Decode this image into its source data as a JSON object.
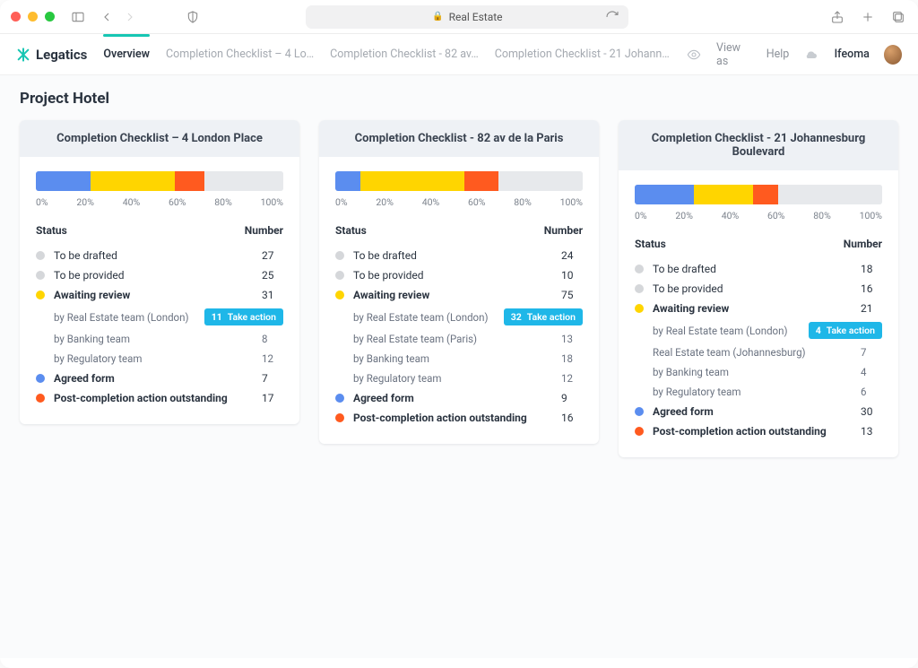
{
  "browser": {
    "address_label": "Real Estate"
  },
  "brand": {
    "name": "Legatics",
    "accent": "#17c6b3"
  },
  "nav": {
    "tabs": [
      {
        "label": "Overview",
        "active": true
      },
      {
        "label": "Completion Checklist – 4 Lo…"
      },
      {
        "label": "Completion Checklist - 82 av…"
      },
      {
        "label": "Completion Checklist - 21 Johann…"
      }
    ],
    "view_as": "View as",
    "help": "Help",
    "user": "Ifeoma"
  },
  "page": {
    "title": "Project Hotel"
  },
  "colors": {
    "blue": "#5b8def",
    "yellow": "#ffd500",
    "orange": "#ff5a1f",
    "grey": "#d5d7da",
    "grey_light": "#e7e9ec",
    "badge": "#1fb7e8",
    "text": "#2b3440"
  },
  "axis_labels": [
    "0%",
    "20%",
    "40%",
    "60%",
    "80%",
    "100%"
  ],
  "table_head": {
    "status": "Status",
    "number": "Number"
  },
  "badge_label": "Take action",
  "cards": [
    {
      "title": "Completion Checklist – 4 London Place",
      "bar": [
        {
          "colorKey": "blue",
          "pct": 22
        },
        {
          "colorKey": "yellow",
          "pct": 34
        },
        {
          "colorKey": "orange",
          "pct": 12
        },
        {
          "colorKey": "grey_light",
          "pct": 32
        }
      ],
      "rows": [
        {
          "kind": "status",
          "dotKey": "grey",
          "label": "To be drafted",
          "num": "27"
        },
        {
          "kind": "status",
          "dotKey": "grey",
          "label": "To be provided",
          "num": "25"
        },
        {
          "kind": "status",
          "dotKey": "yellow",
          "label": "Awaiting review",
          "num": "31",
          "bold": true
        },
        {
          "kind": "sub",
          "label": "by Real Estate team (London)",
          "badge": "11"
        },
        {
          "kind": "sub",
          "label": "by Banking team",
          "num": "8"
        },
        {
          "kind": "sub",
          "label": "by Regulatory team",
          "num": "12"
        },
        {
          "kind": "status",
          "dotKey": "blue",
          "label": "Agreed form",
          "num": "7",
          "bold": true
        },
        {
          "kind": "status",
          "dotKey": "orange",
          "label": "Post-completion action outstanding",
          "num": "17",
          "bold": true
        }
      ]
    },
    {
      "title": "Completion Checklist - 82 av de la Paris",
      "bar": [
        {
          "colorKey": "blue",
          "pct": 10
        },
        {
          "colorKey": "yellow",
          "pct": 42
        },
        {
          "colorKey": "orange",
          "pct": 14
        },
        {
          "colorKey": "grey_light",
          "pct": 34
        }
      ],
      "rows": [
        {
          "kind": "status",
          "dotKey": "grey",
          "label": "To be drafted",
          "num": "24"
        },
        {
          "kind": "status",
          "dotKey": "grey",
          "label": "To be provided",
          "num": "10"
        },
        {
          "kind": "status",
          "dotKey": "yellow",
          "label": "Awaiting review",
          "num": "75",
          "bold": true
        },
        {
          "kind": "sub",
          "label": "by Real Estate team (London)",
          "badge": "32"
        },
        {
          "kind": "sub",
          "label": "by Real Estate team (Paris)",
          "num": "13"
        },
        {
          "kind": "sub",
          "label": "by Banking team",
          "num": "18"
        },
        {
          "kind": "sub",
          "label": "by Regulatory team",
          "num": "12"
        },
        {
          "kind": "status",
          "dotKey": "blue",
          "label": "Agreed form",
          "num": "9",
          "bold": true
        },
        {
          "kind": "status",
          "dotKey": "orange",
          "label": "Post-completion action outstanding",
          "num": "16",
          "bold": true
        }
      ]
    },
    {
      "title": "Completion Checklist - 21 Johannesburg Boulevard",
      "bar": [
        {
          "colorKey": "blue",
          "pct": 24
        },
        {
          "colorKey": "yellow",
          "pct": 24
        },
        {
          "colorKey": "orange",
          "pct": 10
        },
        {
          "colorKey": "grey_light",
          "pct": 42
        }
      ],
      "rows": [
        {
          "kind": "status",
          "dotKey": "grey",
          "label": "To be drafted",
          "num": "18"
        },
        {
          "kind": "status",
          "dotKey": "grey",
          "label": "To be provided",
          "num": "16"
        },
        {
          "kind": "status",
          "dotKey": "yellow",
          "label": "Awaiting review",
          "num": "21",
          "bold": true
        },
        {
          "kind": "sub",
          "label": "by Real Estate team (London)",
          "badge": "4"
        },
        {
          "kind": "sub",
          "label": "Real Estate team (Johannesburg)",
          "num": "7"
        },
        {
          "kind": "sub",
          "label": "by Banking team",
          "num": "4"
        },
        {
          "kind": "sub",
          "label": "by Regulatory team",
          "num": "6"
        },
        {
          "kind": "status",
          "dotKey": "blue",
          "label": "Agreed form",
          "num": "30",
          "bold": true
        },
        {
          "kind": "status",
          "dotKey": "orange",
          "label": "Post-completion action outstanding",
          "num": "13",
          "bold": true
        }
      ]
    }
  ]
}
